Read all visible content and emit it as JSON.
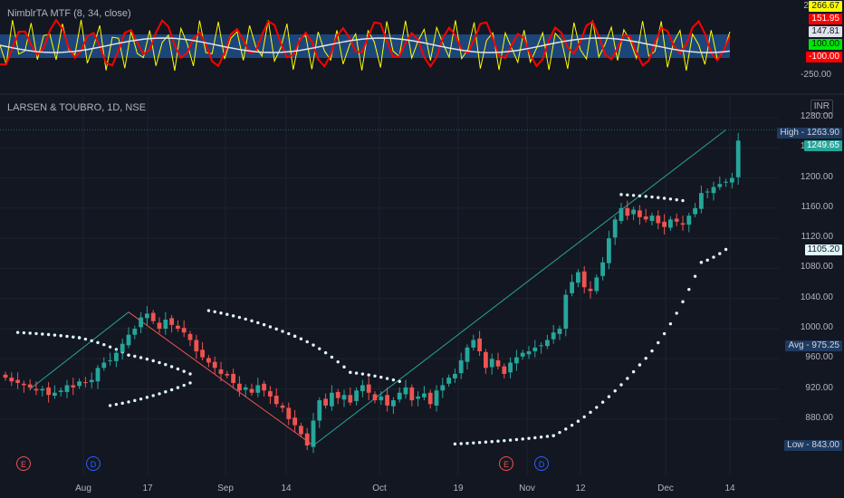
{
  "indicator": {
    "title": "NimblrTA MTF (8, 34, close)",
    "scale_labels": [
      "250.00",
      "-250.00"
    ],
    "tags": [
      {
        "text": "266.67",
        "bg": "#ffff00",
        "fg": "#131722"
      },
      {
        "text": "151.95",
        "bg": "#ff0000",
        "fg": "#ffffff"
      },
      {
        "text": "147.81",
        "bg": "#e0e3eb",
        "fg": "#131722"
      },
      {
        "text": "100.00",
        "bg": "#00e600",
        "fg": "#131722"
      },
      {
        "text": "-100.00",
        "bg": "#ff0000",
        "fg": "#ffffff"
      }
    ]
  },
  "main": {
    "title": "LARSEN & TOUBRO, 1D, NSE",
    "currency": "INR",
    "labels": {
      "high": "High - 1263.90",
      "last": "1249.65",
      "sar": "1105.20",
      "avg": "Avg - 975.25",
      "low": "Low - 843.00"
    },
    "events": [
      "E",
      "D",
      "E",
      "D"
    ]
  },
  "colors": {
    "up": "#26a69a",
    "down": "#ef5350",
    "sar": "#e0f7fa",
    "up_line": "#26a69a",
    "down_line": "#ef5350",
    "ind_yellow": "#ffff00",
    "ind_red": "#ff0000",
    "ind_white": "#e0e3eb",
    "ind_band": "#1f4f8a"
  },
  "chart_data": {
    "type": "candlestick",
    "title": "LARSEN & TOUBRO, 1D, NSE",
    "y_ticks": [
      880,
      920,
      960,
      1000,
      1040,
      1080,
      1120,
      1160,
      1200,
      1240,
      1280
    ],
    "ylim": [
      840,
      1290
    ],
    "x_tick_labels": [
      "Aug",
      "17",
      "Sep",
      "14",
      "Oct",
      "19",
      "Nov",
      "12",
      "Dec",
      "14"
    ],
    "closes": [
      935,
      930,
      928,
      925,
      922,
      918,
      920,
      912,
      915,
      918,
      925,
      922,
      930,
      928,
      932,
      948,
      955,
      958,
      968,
      980,
      992,
      1000,
      1015,
      1020,
      1010,
      1000,
      1012,
      1005,
      1000,
      995,
      985,
      970,
      962,
      955,
      948,
      940,
      938,
      928,
      918,
      922,
      915,
      925,
      918,
      910,
      900,
      895,
      880,
      872,
      860,
      845,
      878,
      905,
      898,
      915,
      908,
      912,
      902,
      918,
      925,
      915,
      905,
      910,
      898,
      905,
      915,
      922,
      905,
      910,
      914,
      900,
      918,
      925,
      935,
      940,
      958,
      975,
      985,
      970,
      948,
      960,
      950,
      940,
      955,
      962,
      968,
      970,
      975,
      978,
      985,
      995,
      1000,
      1045,
      1062,
      1075,
      1055,
      1050,
      1068,
      1088,
      1120,
      1145,
      1160,
      1150,
      1158,
      1148,
      1145,
      1150,
      1140,
      1135,
      1145,
      1142,
      1138,
      1150,
      1160,
      1180,
      1182,
      1188,
      1192,
      1195,
      1200,
      1249.65
    ],
    "sar_downtrend_1": [
      [
        2,
        995
      ],
      [
        12,
        988
      ],
      [
        20,
        965
      ],
      [
        30,
        940
      ]
    ],
    "sar_uptrend_1": [
      [
        17,
        898
      ],
      [
        30,
        928
      ]
    ],
    "sar_downtrend_2": [
      [
        33,
        1024
      ],
      [
        47,
        990
      ],
      [
        56,
        942
      ],
      [
        64,
        930
      ]
    ],
    "sar_uptrend_2": [
      [
        73,
        847
      ],
      [
        89,
        858
      ],
      [
        103,
        952
      ],
      [
        113,
        1088
      ],
      [
        117,
        1105.2
      ]
    ],
    "sar_downtrend_3": [
      [
        100,
        1178
      ],
      [
        110,
        1170
      ]
    ],
    "trend_lines": [
      {
        "from": [
          4,
          920
        ],
        "to": [
          20,
          1022
        ],
        "color": "up"
      },
      {
        "from": [
          20,
          1022
        ],
        "to": [
          50,
          845
        ],
        "color": "down"
      },
      {
        "from": [
          50,
          845
        ],
        "to": [
          117,
          1263.9
        ],
        "color": "up"
      }
    ],
    "high": 1263.9,
    "low": 843.0,
    "avg": 975.25,
    "last": 1249.65,
    "sar_last": 1105.2
  }
}
